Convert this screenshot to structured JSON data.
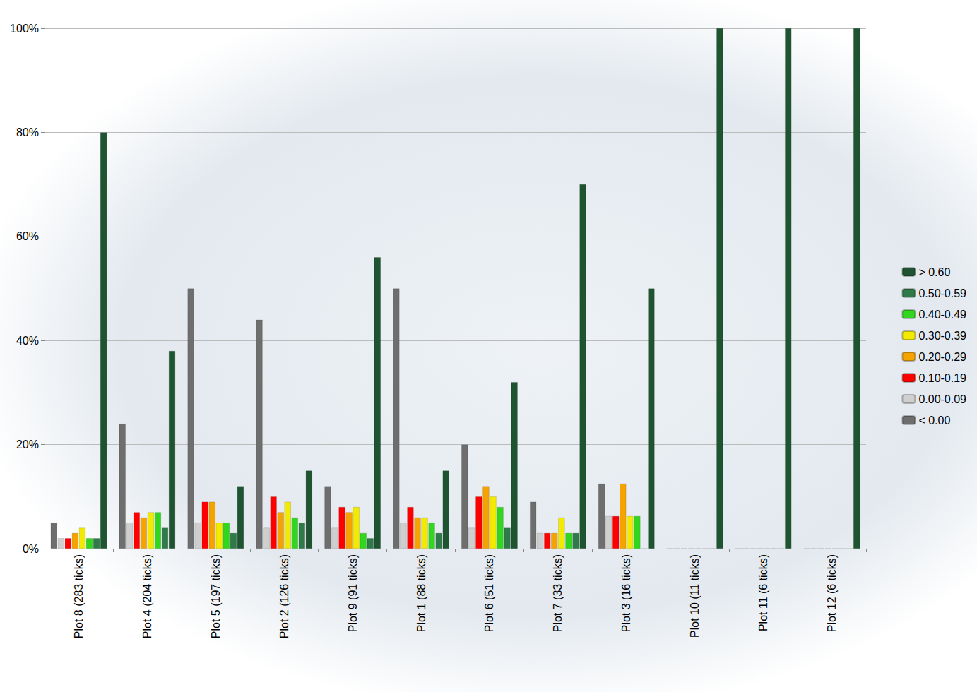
{
  "chart_data": {
    "type": "bar",
    "categories": [
      "Plot 8 (283 ticks)",
      "Plot 4 (204 ticks)",
      "Plot 5 (197 ticks)",
      "Plot 2 (126 ticks)",
      "Plot 9 (91 ticks)",
      "Plot 1 (88 ticks)",
      "Plot 6 (51 ticks)",
      "Plot 7 (33 ticks)",
      "Plot 3 (16 ticks)",
      "Plot 10 (11 ticks)",
      "Plot 11 (6 ticks)",
      "Plot 12 (6 ticks)"
    ],
    "series": [
      {
        "name": "< 0.00",
        "color": "#6e6e6e",
        "values": [
          5,
          24,
          50,
          44,
          12,
          50,
          20,
          9,
          12.5,
          0,
          0,
          0
        ]
      },
      {
        "name": "0.00-0.09",
        "color": "#cfcfcf",
        "values": [
          2,
          5,
          5,
          4,
          4,
          5,
          4,
          3,
          6.25,
          0,
          0,
          0
        ]
      },
      {
        "name": "0.10-0.19",
        "color": "#ff0000",
        "values": [
          2,
          7,
          9,
          10,
          8,
          8,
          10,
          3,
          6.25,
          0,
          0,
          0
        ]
      },
      {
        "name": "0.20-0.29",
        "color": "#f5a300",
        "values": [
          3,
          6,
          9,
          7,
          7,
          6,
          12,
          3,
          12.5,
          0,
          0,
          0
        ]
      },
      {
        "name": "0.30-0.39",
        "color": "#f2ea00",
        "values": [
          4,
          7,
          5,
          9,
          8,
          6,
          10,
          6,
          6.25,
          0,
          0,
          0
        ]
      },
      {
        "name": "0.40-0.49",
        "color": "#33d61f",
        "values": [
          2,
          7,
          5,
          6,
          3,
          5,
          8,
          3,
          6.25,
          0,
          0,
          0
        ]
      },
      {
        "name": "0.50-0.59",
        "color": "#2f7a48",
        "values": [
          2,
          4,
          3,
          5,
          2,
          3,
          4,
          3,
          0,
          0,
          0,
          0
        ]
      },
      {
        "name": "> 0.60",
        "color": "#1e5430",
        "values": [
          80,
          38,
          12,
          15,
          56,
          15,
          32,
          70,
          50,
          100,
          100,
          100
        ]
      }
    ],
    "ylim": [
      0,
      100
    ],
    "yticks": [
      {
        "value": 0,
        "label": "0%"
      },
      {
        "value": 20,
        "label": "20%"
      },
      {
        "value": 40,
        "label": "40%"
      },
      {
        "value": 60,
        "label": "60%"
      },
      {
        "value": 80,
        "label": "80%"
      },
      {
        "value": 100,
        "label": "100%"
      }
    ],
    "grid": true,
    "legend": "right"
  }
}
